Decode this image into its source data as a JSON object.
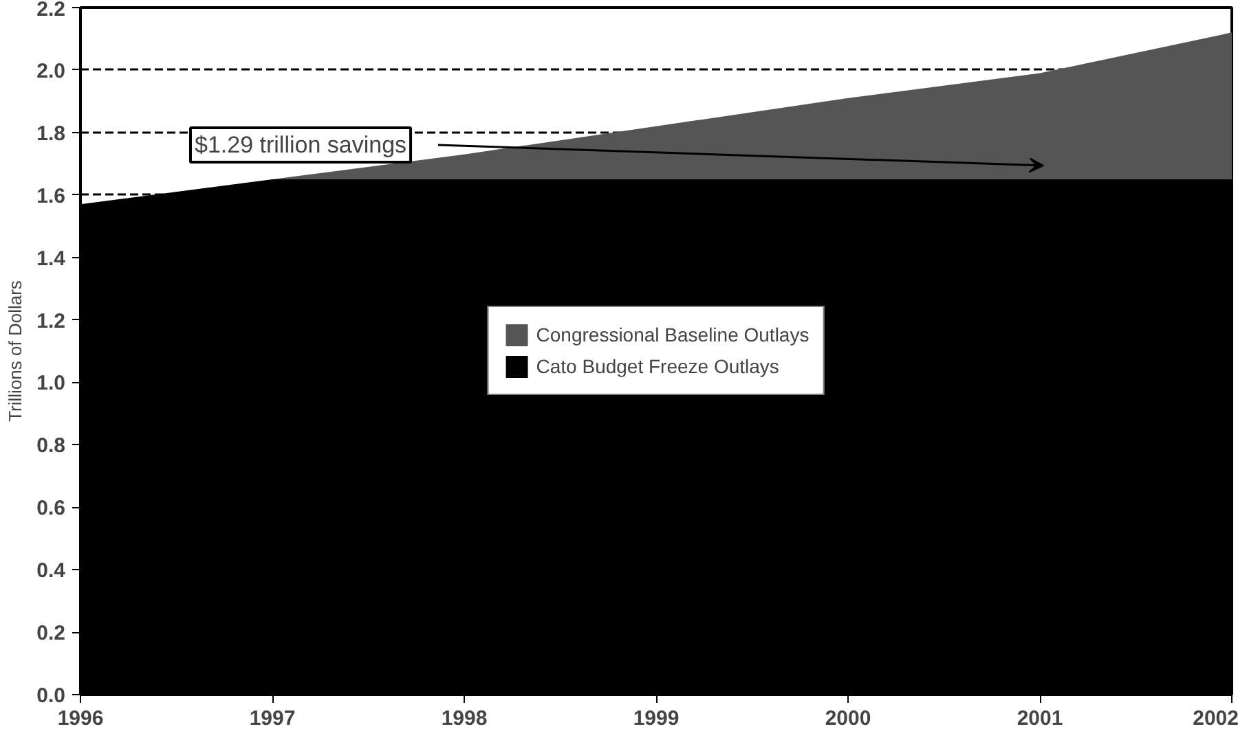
{
  "chart_data": {
    "type": "area",
    "stacked": true,
    "ylabel": "Trillions of Dollars",
    "x": [
      1996,
      1997,
      1998,
      1999,
      2000,
      2001,
      2002
    ],
    "series": [
      {
        "name": "Cato Budget Freeze Outlays",
        "color": "#000000",
        "values": [
          1.57,
          1.65,
          1.65,
          1.65,
          1.65,
          1.65,
          1.65
        ]
      },
      {
        "name": "Congressional Baseline Outlays",
        "color": "#555555",
        "values": [
          0,
          0,
          0.08,
          0.17,
          0.26,
          0.34,
          0.47
        ]
      }
    ],
    "xlim": [
      1996,
      2002
    ],
    "xticks": [
      1996,
      1997,
      1998,
      1999,
      2000,
      2001,
      2002
    ],
    "ylim": [
      0,
      2.2
    ],
    "yticks": [
      {
        "value": 0,
        "label": "0.0"
      },
      0.2,
      0.4,
      0.6,
      0.8,
      {
        "value": 1,
        "label": "1.0"
      },
      1.2,
      1.4,
      1.6,
      1.8,
      {
        "value": 2,
        "label": "2.0"
      },
      2.2
    ],
    "grid": "y",
    "legend": "center",
    "annotations": [
      "$1.29 trillion savings"
    ]
  }
}
